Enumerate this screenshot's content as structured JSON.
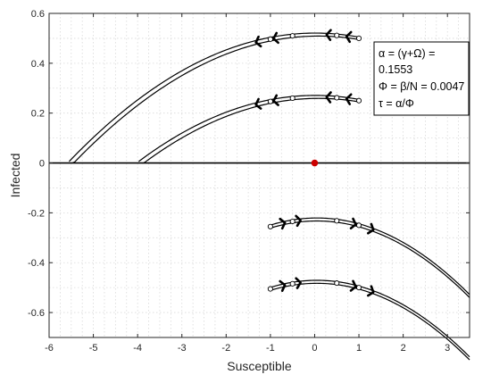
{
  "chart_data": {
    "type": "line",
    "xlabel": "Susceptible",
    "ylabel": "Infected",
    "xlim": [
      -6,
      3.5
    ],
    "ylim": [
      -0.7,
      0.6
    ],
    "xticks": [
      -6,
      -5,
      -4,
      -3,
      -2,
      -1,
      0,
      1,
      2,
      3
    ],
    "yticks": [
      -0.6,
      -0.4,
      -0.2,
      0,
      0.2,
      0.4,
      0.6
    ],
    "grid": true,
    "alpha": 0.1553,
    "phi": 0.0047,
    "annotation_lines": [
      "α = (γ+Ω) =",
      "0.1553",
      "Φ = β/N = 0.0047",
      "τ = α/Φ"
    ],
    "equilibrium_point": {
      "x": 0,
      "y": 0,
      "color": "#cc0000"
    },
    "series": [
      {
        "start_y": 0.5,
        "arrow_direction": "left"
      },
      {
        "start_y": 0.25,
        "arrow_direction": "left"
      },
      {
        "start_y": -0.25,
        "arrow_direction": "right"
      },
      {
        "start_y": -0.5,
        "arrow_direction": "right"
      }
    ],
    "initial_x": [
      -1,
      -0.5,
      0.5,
      1
    ]
  }
}
